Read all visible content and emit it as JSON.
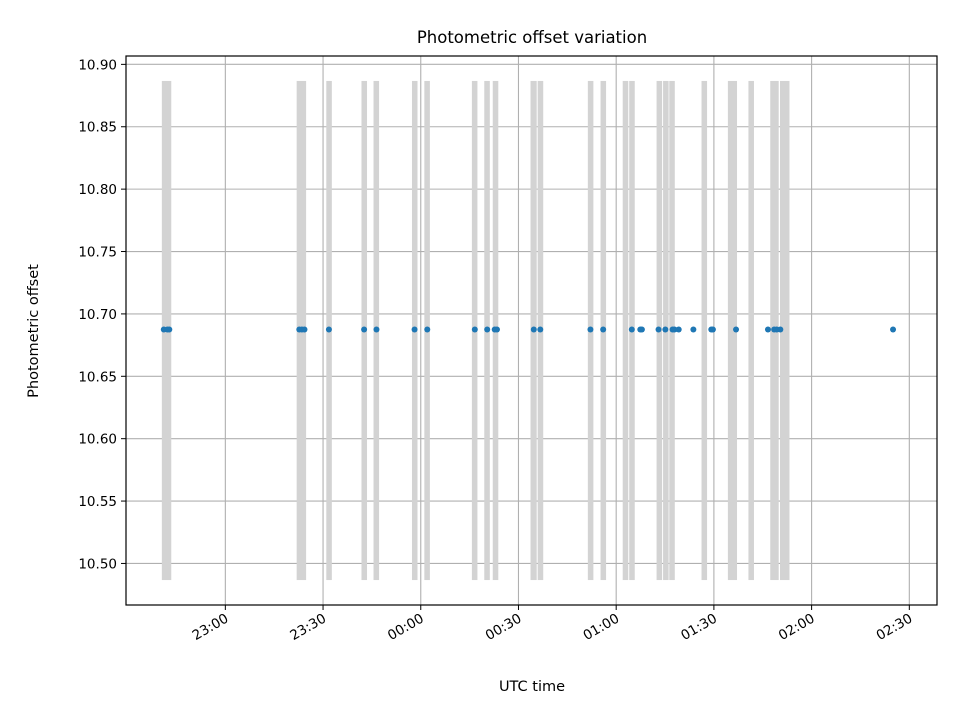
{
  "chart_data": {
    "type": "scatter",
    "title": "Photometric offset variation",
    "xlabel": "UTC time",
    "ylabel": "Photometric offset",
    "x_start_label": "22:40",
    "xlim_minutes": [
      -10.5,
      238.5
    ],
    "ylim": [
      10.4667,
      10.9067
    ],
    "grid": true,
    "x_ticks": [
      {
        "min": 20,
        "label": "23:00"
      },
      {
        "min": 50,
        "label": "23:30"
      },
      {
        "min": 80,
        "label": "00:00"
      },
      {
        "min": 110,
        "label": "00:30"
      },
      {
        "min": 140,
        "label": "01:00"
      },
      {
        "min": 170,
        "label": "01:30"
      },
      {
        "min": 200,
        "label": "02:00"
      },
      {
        "min": 230,
        "label": "02:30"
      }
    ],
    "y_ticks": [
      {
        "value": 10.5,
        "label": "10.50"
      },
      {
        "value": 10.55,
        "label": "10.55"
      },
      {
        "value": 10.6,
        "label": "10.60"
      },
      {
        "value": 10.65,
        "label": "10.65"
      },
      {
        "value": 10.7,
        "label": "10.70"
      },
      {
        "value": 10.75,
        "label": "10.75"
      },
      {
        "value": 10.8,
        "label": "10.80"
      },
      {
        "value": 10.85,
        "label": "10.85"
      },
      {
        "value": 10.9,
        "label": "10.90"
      }
    ],
    "band_y": [
      10.4867,
      10.8867
    ],
    "bands": [
      {
        "start": 0.5,
        "end": 3.4
      },
      {
        "start": 41.9,
        "end": 44.8
      },
      {
        "start": 51.0,
        "end": 52.7
      },
      {
        "start": 61.8,
        "end": 63.5
      },
      {
        "start": 65.5,
        "end": 67.2
      },
      {
        "start": 77.3,
        "end": 79.0
      },
      {
        "start": 81.1,
        "end": 82.8
      },
      {
        "start": 95.7,
        "end": 97.4
      },
      {
        "start": 99.5,
        "end": 101.2
      },
      {
        "start": 102.1,
        "end": 103.8
      },
      {
        "start": 113.7,
        "end": 115.6
      },
      {
        "start": 115.9,
        "end": 117.6
      },
      {
        "start": 131.3,
        "end": 133.0
      },
      {
        "start": 135.2,
        "end": 136.9
      },
      {
        "start": 142.0,
        "end": 143.7
      },
      {
        "start": 144.0,
        "end": 145.7
      },
      {
        "start": 152.4,
        "end": 154.1
      },
      {
        "start": 154.4,
        "end": 156.1
      },
      {
        "start": 156.3,
        "end": 158.0
      },
      {
        "start": 166.2,
        "end": 167.9
      },
      {
        "start": 174.3,
        "end": 177.1
      },
      {
        "start": 180.6,
        "end": 182.3
      },
      {
        "start": 187.3,
        "end": 189.9
      },
      {
        "start": 190.3,
        "end": 193.2
      }
    ],
    "series": [
      {
        "color": "#1f77b4",
        "x": [
          1.1,
          2.2,
          2.8,
          42.7,
          43.5,
          44.3,
          51.8,
          62.6,
          66.4,
          78.1,
          82.0,
          96.6,
          100.4,
          102.7,
          103.4,
          114.7,
          116.7,
          132.1,
          136.0,
          144.8,
          147.4,
          147.9,
          153.0,
          155.1,
          157.3,
          157.9,
          159.2,
          163.7,
          169.2,
          169.7,
          176.8,
          186.6,
          188.5,
          189.3,
          190.4,
          225.0
        ],
        "y": [
          10.6875,
          10.6875,
          10.6875,
          10.6875,
          10.6875,
          10.6875,
          10.6875,
          10.6875,
          10.6875,
          10.6875,
          10.6875,
          10.6875,
          10.6875,
          10.6875,
          10.6875,
          10.6875,
          10.6875,
          10.6875,
          10.6875,
          10.6875,
          10.6875,
          10.6875,
          10.6875,
          10.6875,
          10.6875,
          10.6875,
          10.6875,
          10.6875,
          10.6875,
          10.6875,
          10.6875,
          10.6875,
          10.6875,
          10.6875,
          10.6875,
          10.6875
        ]
      }
    ],
    "band_color": "#d3d3d3",
    "grid_color": "#b0b0b0"
  }
}
